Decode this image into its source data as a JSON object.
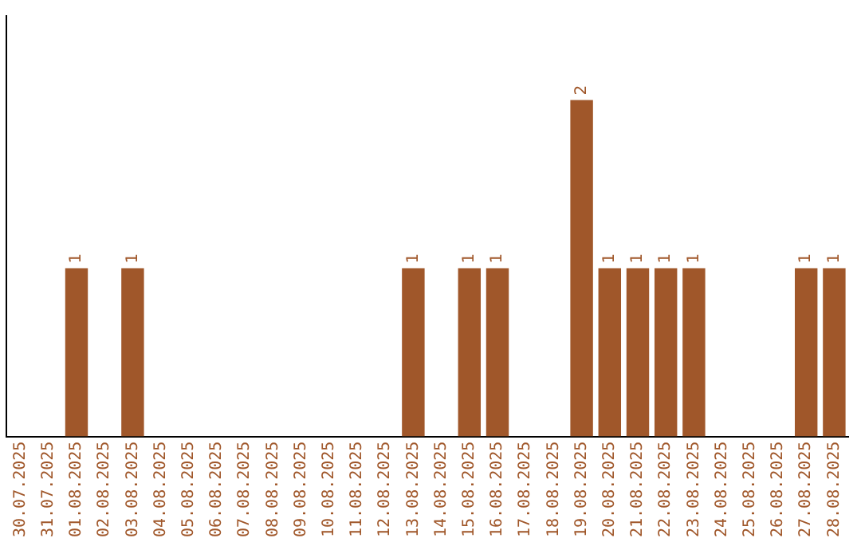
{
  "chart_data": {
    "type": "bar",
    "categories": [
      "30.07.2025",
      "31.07.2025",
      "01.08.2025",
      "02.08.2025",
      "03.08.2025",
      "04.08.2025",
      "05.08.2025",
      "06.08.2025",
      "07.08.2025",
      "08.08.2025",
      "09.08.2025",
      "10.08.2025",
      "11.08.2025",
      "12.08.2025",
      "13.08.2025",
      "14.08.2025",
      "15.08.2025",
      "16.08.2025",
      "17.08.2025",
      "18.08.2025",
      "19.08.2025",
      "20.08.2025",
      "21.08.2025",
      "22.08.2025",
      "23.08.2025",
      "24.08.2025",
      "25.08.2025",
      "26.08.2025",
      "27.08.2025",
      "28.08.2025"
    ],
    "values": [
      0,
      0,
      1,
      0,
      1,
      0,
      0,
      0,
      0,
      0,
      0,
      0,
      0,
      0,
      1,
      0,
      1,
      1,
      0,
      0,
      2,
      1,
      1,
      1,
      1,
      0,
      0,
      0,
      1,
      1
    ],
    "value_labels": [
      null,
      null,
      "1",
      null,
      "1",
      null,
      null,
      null,
      null,
      null,
      null,
      null,
      null,
      null,
      "1",
      null,
      "1",
      "1",
      null,
      null,
      "2",
      "1",
      "1",
      "1",
      "1",
      null,
      null,
      null,
      "1",
      "1"
    ],
    "color": "#a0572a",
    "tick_labels": "x",
    "grid": false,
    "legend": false
  }
}
